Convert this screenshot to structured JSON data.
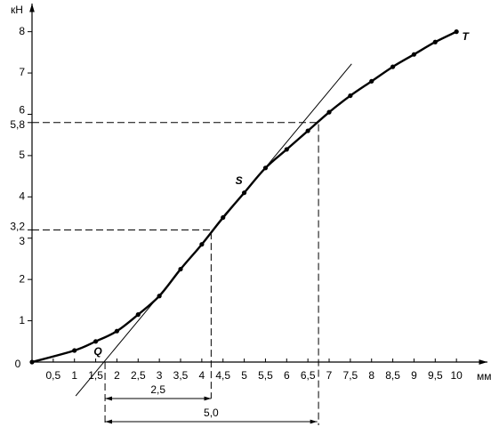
{
  "chart_data": {
    "type": "line",
    "x_label": "мм",
    "y_label": "кН",
    "origin_label": "0",
    "x": [
      0,
      1,
      1.5,
      2,
      2.5,
      3,
      3.5,
      4,
      4.5,
      5,
      5.5,
      6,
      6.5,
      7,
      7.5,
      8,
      8.5,
      9,
      9.5,
      10
    ],
    "values": [
      0,
      0.28,
      0.5,
      0.75,
      1.15,
      1.6,
      2.25,
      2.85,
      3.5,
      4.1,
      4.7,
      5.15,
      5.6,
      6.05,
      6.45,
      6.8,
      7.15,
      7.45,
      7.75,
      8.0
    ],
    "color": "#000000",
    "xlim": [
      0,
      10.73
    ],
    "ylim": [
      0,
      8.66
    ],
    "xticks": [
      {
        "value": 0.5,
        "label": "0,5"
      },
      1,
      {
        "value": 1.5,
        "label": "1,5"
      },
      2,
      {
        "value": 2.5,
        "label": "2,5"
      },
      3,
      {
        "value": 3.5,
        "label": "3,5"
      },
      4,
      {
        "value": 4.5,
        "label": "4,5"
      },
      5,
      {
        "value": 5.5,
        "label": "5,5"
      },
      6,
      {
        "value": 6.5,
        "label": "6,5"
      },
      7,
      {
        "value": 7.5,
        "label": "7,5"
      },
      8,
      {
        "value": 8.5,
        "label": "8,5"
      },
      9,
      {
        "value": 9.5,
        "label": "9,5"
      },
      10
    ],
    "yticks": [
      1,
      2,
      3,
      {
        "value": 3.2,
        "label": "3,2"
      },
      4,
      5,
      {
        "value": 5.8,
        "label": "5,8"
      },
      6,
      7,
      8
    ],
    "tangent": {
      "x": [
        1.03,
        7.53
      ],
      "y": [
        -0.82,
        7.22
      ]
    },
    "reference_lines": [
      {
        "x": 4.22,
        "y": 3.2
      },
      {
        "x": 6.75,
        "y": 5.8
      }
    ],
    "points": [
      {
        "label": "Q",
        "x": 1.72,
        "y": 0
      },
      {
        "label": "S",
        "x": 5,
        "y": 4.1
      },
      {
        "label": "T",
        "x": 10,
        "y": 8
      }
    ],
    "dimensions": [
      {
        "from": 1.72,
        "value": 2.5,
        "label": "2,5"
      },
      {
        "from": 1.72,
        "value": 5.0,
        "label": "5,0"
      }
    ]
  }
}
